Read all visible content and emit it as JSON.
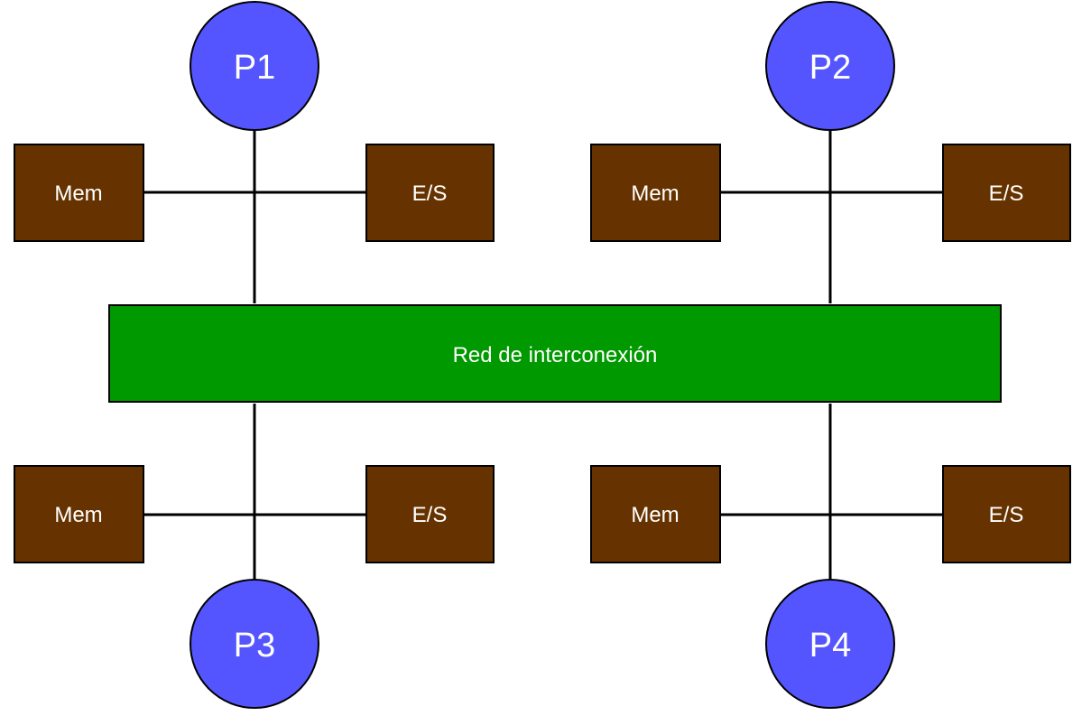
{
  "diagram": {
    "network": {
      "label": "Red de interconexión"
    },
    "nodes": [
      {
        "processor": "P1",
        "memory": "Mem",
        "io": "E/S"
      },
      {
        "processor": "P2",
        "memory": "Mem",
        "io": "E/S"
      },
      {
        "processor": "P3",
        "memory": "Mem",
        "io": "E/S"
      },
      {
        "processor": "P4",
        "memory": "Mem",
        "io": "E/S"
      }
    ]
  },
  "colors": {
    "processor_fill": "#5555ff",
    "box_fill": "#663300",
    "network_fill": "#009900",
    "line": "#000000",
    "label_text": "#ffffff"
  }
}
